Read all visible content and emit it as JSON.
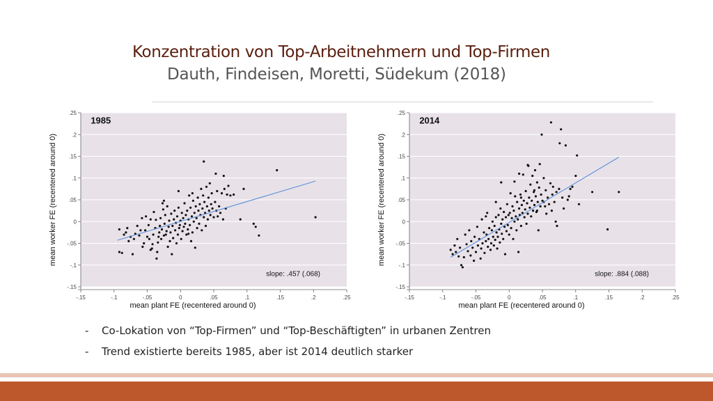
{
  "title": "Konzentration von Top-Arbeitnehmern und Top-Firmen",
  "subtitle": "Dauth, Findeisen, Moretti, Südekum (2018)",
  "bullets": [
    "Co-Lokation von “Top-Firmen” und “Top-Beschäftigten” in urbanen Zentren",
    "Trend existierte bereits 1985, aber ist 2014 deutlich starker"
  ],
  "bullet_marker": "-",
  "colors": {
    "title": "#5a1e0e",
    "accent": "#bd582c",
    "plot_bg": "#e8e2e8",
    "fit": "#5b8fd9",
    "points": "#111111"
  },
  "chart_data": [
    {
      "type": "scatter",
      "panel_label": "1985",
      "xlabel": "mean plant FE (recentered around 0)",
      "ylabel": "mean worker FE (recentered around 0)",
      "xlim": [
        -0.15,
        0.25
      ],
      "ylim": [
        -0.15,
        0.25
      ],
      "xticks": [
        -0.15,
        -0.1,
        -0.05,
        0,
        0.05,
        0.1,
        0.15,
        0.2,
        0.25
      ],
      "xtick_labels": [
        "-.15",
        "-.1",
        "-.05",
        "0",
        ".05",
        ".1",
        ".15",
        ".2",
        ".25"
      ],
      "yticks": [
        -0.15,
        -0.1,
        -0.05,
        0,
        0.05,
        0.1,
        0.15,
        0.2,
        0.25
      ],
      "ytick_labels": [
        "-.15",
        "-.1",
        "-.05",
        "0",
        ".05",
        ".1",
        ".15",
        ".2",
        ".25"
      ],
      "fit_line": {
        "x": [
          -0.095,
          0.203
        ],
        "y": [
          -0.043,
          0.093
        ]
      },
      "annotation": "slope: .457 (.068)",
      "points": [
        [
          -0.092,
          -0.018
        ],
        [
          -0.092,
          -0.07
        ],
        [
          -0.088,
          -0.072
        ],
        [
          -0.085,
          -0.03
        ],
        [
          -0.082,
          -0.025
        ],
        [
          -0.08,
          -0.015
        ],
        [
          -0.078,
          -0.045
        ],
        [
          -0.075,
          -0.035
        ],
        [
          -0.072,
          -0.075
        ],
        [
          -0.07,
          -0.04
        ],
        [
          -0.068,
          -0.028
        ],
        [
          -0.065,
          -0.01
        ],
        [
          -0.062,
          -0.032
        ],
        [
          -0.06,
          -0.02
        ],
        [
          -0.058,
          0.008
        ],
        [
          -0.057,
          -0.058
        ],
        [
          -0.055,
          -0.05
        ],
        [
          -0.053,
          -0.02
        ],
        [
          -0.052,
          0.012
        ],
        [
          -0.05,
          -0.035
        ],
        [
          -0.048,
          -0.008
        ],
        [
          -0.047,
          -0.04
        ],
        [
          -0.045,
          0.005
        ],
        [
          -0.043,
          -0.062
        ],
        [
          -0.042,
          -0.052
        ],
        [
          -0.041,
          -0.03
        ],
        [
          -0.04,
          0.022
        ],
        [
          -0.038,
          -0.015
        ],
        [
          -0.037,
          0.004
        ],
        [
          -0.036,
          -0.085
        ],
        [
          -0.035,
          -0.07
        ],
        [
          -0.034,
          -0.048
        ],
        [
          -0.033,
          -0.035
        ],
        [
          -0.032,
          -0.025
        ],
        [
          -0.031,
          -0.01
        ],
        [
          -0.03,
          0.008
        ],
        [
          -0.029,
          -0.04
        ],
        [
          -0.028,
          -0.018
        ],
        [
          -0.027,
          0.042
        ],
        [
          -0.026,
          0.028
        ],
        [
          -0.025,
          -0.032
        ],
        [
          -0.024,
          -0.005
        ],
        [
          -0.023,
          0.015
        ],
        [
          -0.022,
          -0.03
        ],
        [
          -0.021,
          -0.022
        ],
        [
          -0.02,
          0.035
        ],
        [
          -0.019,
          -0.058
        ],
        [
          -0.018,
          -0.012
        ],
        [
          -0.017,
          0.002
        ],
        [
          -0.016,
          -0.045
        ],
        [
          -0.015,
          -0.025
        ],
        [
          -0.014,
          0.018
        ],
        [
          -0.013,
          -0.075
        ],
        [
          -0.012,
          -0.01
        ],
        [
          -0.011,
          -0.038
        ],
        [
          -0.01,
          0.005
        ],
        [
          -0.009,
          0.025
        ],
        [
          -0.008,
          -0.02
        ],
        [
          -0.007,
          -0.003
        ],
        [
          -0.006,
          -0.05
        ],
        [
          -0.005,
          0.012
        ],
        [
          -0.004,
          -0.03
        ],
        [
          -0.003,
          0.032
        ],
        [
          -0.002,
          -0.015
        ],
        [
          -0.001,
          -0.008
        ],
        [
          0.0,
          0.002
        ],
        [
          0.001,
          -0.04
        ],
        [
          0.002,
          0.02
        ],
        [
          0.003,
          -0.022
        ],
        [
          0.004,
          0.008
        ],
        [
          0.005,
          -0.012
        ],
        [
          0.006,
          0.042
        ],
        [
          0.007,
          -0.005
        ],
        [
          0.008,
          0.015
        ],
        [
          0.009,
          -0.03
        ],
        [
          0.01,
          0.025
        ],
        [
          0.011,
          -0.018
        ],
        [
          0.012,
          0.005
        ],
        [
          0.013,
          0.06
        ],
        [
          0.014,
          -0.008
        ],
        [
          0.015,
          0.032
        ],
        [
          0.016,
          -0.045
        ],
        [
          0.017,
          0.012
        ],
        [
          0.018,
          -0.025
        ],
        [
          0.019,
          0.048
        ],
        [
          0.02,
          0.0
        ],
        [
          0.021,
          0.02
        ],
        [
          0.022,
          -0.06
        ],
        [
          0.023,
          0.035
        ],
        [
          0.024,
          0.008
        ],
        [
          0.025,
          -0.015
        ],
        [
          0.026,
          0.055
        ],
        [
          0.027,
          0.025
        ],
        [
          0.028,
          -0.005
        ],
        [
          0.029,
          0.04
        ],
        [
          0.03,
          0.015
        ],
        [
          0.031,
          0.075
        ],
        [
          0.032,
          -0.02
        ],
        [
          0.033,
          0.03
        ],
        [
          0.034,
          0.06
        ],
        [
          0.035,
          0.01
        ],
        [
          0.036,
          0.045
        ],
        [
          0.037,
          0.02
        ],
        [
          0.038,
          -0.01
        ],
        [
          0.039,
          0.08
        ],
        [
          0.04,
          0.035
        ],
        [
          0.041,
          0.005
        ],
        [
          0.042,
          0.055
        ],
        [
          0.043,
          0.025
        ],
        [
          0.044,
          0.088
        ],
        [
          0.045,
          0.015
        ],
        [
          0.046,
          0.04
        ],
        [
          0.047,
          0.065
        ],
        [
          0.048,
          0.03
        ],
        [
          0.05,
          0.01
        ],
        [
          0.052,
          0.045
        ],
        [
          0.053,
          0.11
        ],
        [
          0.054,
          0.025
        ],
        [
          0.055,
          0.07
        ],
        [
          0.056,
          0.012
        ],
        [
          0.058,
          0.035
        ],
        [
          0.06,
          0.02
        ],
        [
          0.062,
          0.065
        ],
        [
          0.064,
          0.005
        ],
        [
          0.065,
          0.105
        ],
        [
          0.066,
          0.075
        ],
        [
          0.068,
          0.03
        ],
        [
          0.07,
          0.062
        ],
        [
          0.072,
          0.082
        ],
        [
          0.075,
          0.06
        ],
        [
          0.08,
          0.062
        ],
        [
          0.09,
          0.005
        ],
        [
          0.095,
          0.075
        ],
        [
          0.11,
          -0.005
        ],
        [
          0.113,
          -0.012
        ],
        [
          0.118,
          -0.032
        ],
        [
          0.145,
          0.118
        ],
        [
          0.203,
          0.01
        ],
        [
          0.035,
          0.138
        ],
        [
          -0.003,
          0.07
        ],
        [
          0.012,
          -0.028
        ],
        [
          -0.025,
          0.048
        ],
        [
          0.018,
          0.065
        ],
        [
          -0.045,
          -0.065
        ]
      ]
    },
    {
      "type": "scatter",
      "panel_label": "2014",
      "xlabel": "mean plant FE (recentered around 0)",
      "ylabel": "mean worker FE (recentered around 0)",
      "xlim": [
        -0.15,
        0.25
      ],
      "ylim": [
        -0.15,
        0.25
      ],
      "xticks": [
        -0.15,
        -0.1,
        -0.05,
        0,
        0.05,
        0.1,
        0.15,
        0.2,
        0.25
      ],
      "xtick_labels": [
        "-.15",
        "-.1",
        "-.05",
        "0",
        ".05",
        ".1",
        ".15",
        ".2",
        ".25"
      ],
      "yticks": [
        -0.15,
        -0.1,
        -0.05,
        0,
        0.05,
        0.1,
        0.15,
        0.2,
        0.25
      ],
      "ytick_labels": [
        "-.15",
        "-.1",
        "-.05",
        "0",
        ".05",
        ".1",
        ".15",
        ".2",
        ".25"
      ],
      "fit_line": {
        "x": [
          -0.088,
          0.165
        ],
        "y": [
          -0.082,
          0.148
        ]
      },
      "annotation": "slope: .884 (.088)",
      "points": [
        [
          -0.088,
          -0.065
        ],
        [
          -0.085,
          -0.075
        ],
        [
          -0.082,
          -0.055
        ],
        [
          -0.08,
          -0.07
        ],
        [
          -0.078,
          -0.04
        ],
        [
          -0.076,
          -0.08
        ],
        [
          -0.074,
          -0.06
        ],
        [
          -0.072,
          -0.1
        ],
        [
          -0.07,
          -0.105
        ],
        [
          -0.068,
          -0.082
        ],
        [
          -0.066,
          -0.03
        ],
        [
          -0.064,
          -0.052
        ],
        [
          -0.062,
          -0.068
        ],
        [
          -0.06,
          -0.02
        ],
        [
          -0.058,
          -0.078
        ],
        [
          -0.057,
          -0.045
        ],
        [
          -0.055,
          -0.06
        ],
        [
          -0.053,
          -0.09
        ],
        [
          -0.052,
          -0.035
        ],
        [
          -0.05,
          -0.07
        ],
        [
          -0.048,
          -0.012
        ],
        [
          -0.047,
          -0.055
        ],
        [
          -0.045,
          -0.04
        ],
        [
          -0.043,
          -0.085
        ],
        [
          -0.042,
          -0.062
        ],
        [
          -0.041,
          0.005
        ],
        [
          -0.04,
          -0.05
        ],
        [
          -0.038,
          -0.025
        ],
        [
          -0.037,
          -0.072
        ],
        [
          -0.035,
          -0.045
        ],
        [
          -0.034,
          -0.03
        ],
        [
          -0.033,
          0.02
        ],
        [
          -0.032,
          -0.058
        ],
        [
          -0.031,
          -0.04
        ],
        [
          -0.03,
          -0.015
        ],
        [
          -0.028,
          -0.065
        ],
        [
          -0.027,
          -0.05
        ],
        [
          -0.026,
          -0.02
        ],
        [
          -0.025,
          0.0
        ],
        [
          -0.024,
          -0.035
        ],
        [
          -0.023,
          -0.055
        ],
        [
          -0.022,
          -0.01
        ],
        [
          -0.021,
          -0.042
        ],
        [
          -0.02,
          0.01
        ],
        [
          -0.019,
          -0.025
        ],
        [
          -0.018,
          -0.062
        ],
        [
          -0.017,
          -0.035
        ],
        [
          -0.016,
          0.015
        ],
        [
          -0.015,
          -0.018
        ],
        [
          -0.014,
          -0.048
        ],
        [
          -0.013,
          0.03
        ],
        [
          -0.012,
          -0.005
        ],
        [
          -0.011,
          -0.028
        ],
        [
          -0.01,
          0.005
        ],
        [
          -0.009,
          -0.04
        ],
        [
          -0.008,
          0.022
        ],
        [
          -0.007,
          -0.012
        ],
        [
          -0.006,
          -0.075
        ],
        [
          -0.005,
          0.01
        ],
        [
          -0.004,
          -0.022
        ],
        [
          -0.003,
          0.04
        ],
        [
          -0.002,
          -0.008
        ],
        [
          -0.001,
          0.015
        ],
        [
          0.0,
          -0.03
        ],
        [
          0.001,
          0.02
        ],
        [
          0.002,
          0.065
        ],
        [
          0.003,
          -0.015
        ],
        [
          0.004,
          0.008
        ],
        [
          0.005,
          0.035
        ],
        [
          0.006,
          -0.04
        ],
        [
          0.007,
          0.025
        ],
        [
          0.008,
          0.0
        ],
        [
          0.009,
          0.058
        ],
        [
          0.01,
          0.012
        ],
        [
          0.011,
          -0.02
        ],
        [
          0.012,
          0.045
        ],
        [
          0.013,
          0.005
        ],
        [
          0.014,
          -0.07
        ],
        [
          0.015,
          0.03
        ],
        [
          0.016,
          0.015
        ],
        [
          0.017,
          0.062
        ],
        [
          0.018,
          -0.01
        ],
        [
          0.019,
          0.038
        ],
        [
          0.02,
          0.02
        ],
        [
          0.021,
          0.108
        ],
        [
          0.022,
          0.048
        ],
        [
          0.023,
          0.01
        ],
        [
          0.024,
          0.028
        ],
        [
          0.025,
          0.07
        ],
        [
          0.026,
          -0.005
        ],
        [
          0.027,
          0.042
        ],
        [
          0.028,
          0.018
        ],
        [
          0.029,
          0.128
        ],
        [
          0.03,
          0.055
        ],
        [
          0.031,
          0.032
        ],
        [
          0.032,
          0.085
        ],
        [
          0.033,
          0.012
        ],
        [
          0.034,
          0.048
        ],
        [
          0.035,
          0.105
        ],
        [
          0.036,
          0.025
        ],
        [
          0.037,
          0.068
        ],
        [
          0.038,
          0.038
        ],
        [
          0.039,
          0.118
        ],
        [
          0.04,
          0.058
        ],
        [
          0.041,
          0.022
        ],
        [
          0.042,
          0.09
        ],
        [
          0.043,
          0.045
        ],
        [
          0.044,
          -0.02
        ],
        [
          0.045,
          0.078
        ],
        [
          0.046,
          0.132
        ],
        [
          0.047,
          0.035
        ],
        [
          0.048,
          0.062
        ],
        [
          0.049,
          0.2
        ],
        [
          0.05,
          0.048
        ],
        [
          0.052,
          0.1
        ],
        [
          0.054,
          0.035
        ],
        [
          0.055,
          0.072
        ],
        [
          0.056,
          0.018
        ],
        [
          0.058,
          0.055
        ],
        [
          0.06,
          0.04
        ],
        [
          0.062,
          0.088
        ],
        [
          0.063,
          0.228
        ],
        [
          0.064,
          0.025
        ],
        [
          0.065,
          0.062
        ],
        [
          0.066,
          0.08
        ],
        [
          0.068,
          0.045
        ],
        [
          0.07,
          0.0
        ],
        [
          0.071,
          0.068
        ],
        [
          0.072,
          -0.01
        ],
        [
          0.075,
          0.075
        ],
        [
          0.076,
          0.18
        ],
        [
          0.078,
          0.212
        ],
        [
          0.08,
          0.055
        ],
        [
          0.082,
          0.03
        ],
        [
          0.085,
          0.175
        ],
        [
          0.088,
          0.05
        ],
        [
          0.09,
          0.058
        ],
        [
          0.092,
          0.075
        ],
        [
          0.095,
          0.08
        ],
        [
          0.1,
          0.105
        ],
        [
          0.102,
          0.152
        ],
        [
          0.105,
          0.04
        ],
        [
          0.125,
          0.068
        ],
        [
          0.148,
          -0.018
        ],
        [
          0.165,
          0.068
        ],
        [
          -0.012,
          0.09
        ],
        [
          0.015,
          0.11
        ],
        [
          0.028,
          0.13
        ],
        [
          -0.02,
          0.045
        ],
        [
          0.008,
          0.092
        ],
        [
          0.038,
          0.072
        ],
        [
          0.052,
          0.045
        ],
        [
          0.018,
          0.055
        ],
        [
          -0.035,
          0.012
        ],
        [
          0.042,
          0.025
        ]
      ]
    }
  ]
}
